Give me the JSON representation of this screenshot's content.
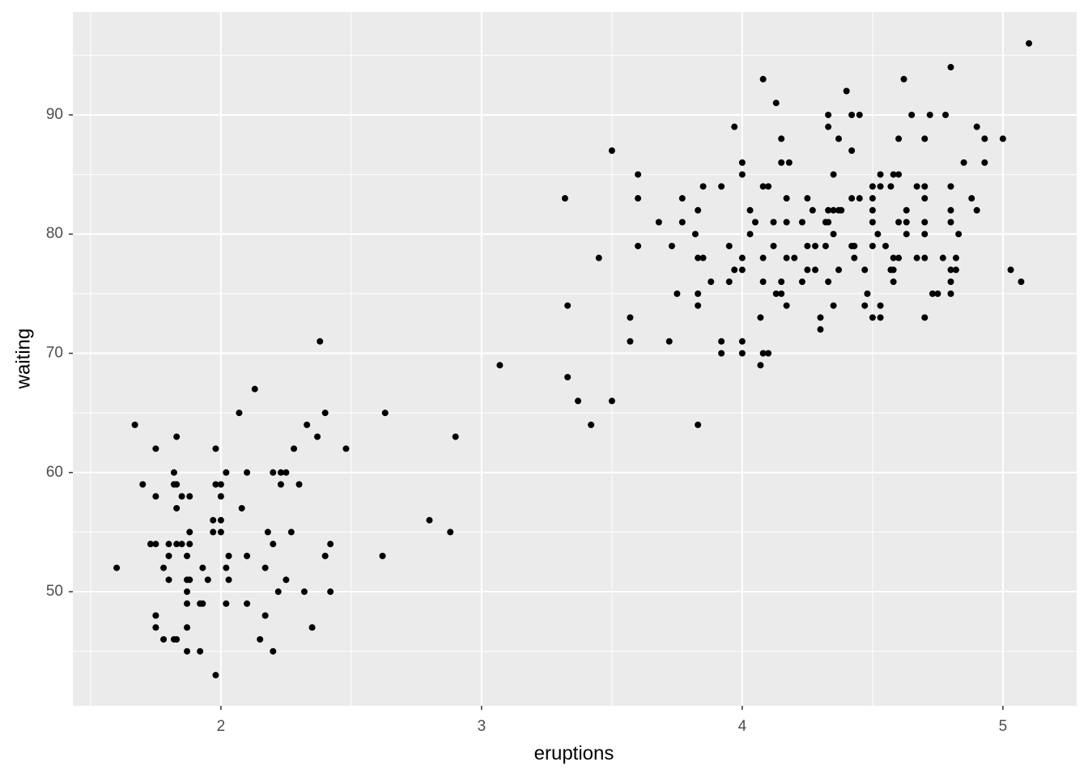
{
  "chart_data": {
    "type": "scatter",
    "x_label": "eruptions",
    "y_label": "waiting",
    "xlim": [
      1.432,
      5.283
    ],
    "ylim": [
      40.43,
      98.62
    ],
    "xticks": [
      2,
      3,
      4,
      5
    ],
    "yticks": [
      50,
      60,
      70,
      80,
      90
    ],
    "xminor": [
      1.5,
      2.5,
      3.5,
      4.5
    ],
    "yminor": [
      45,
      55,
      65,
      75,
      85,
      95
    ],
    "grid": true,
    "color": "#000000",
    "x": [
      1.6,
      1.67,
      1.7,
      1.73,
      1.75,
      1.75,
      1.75,
      1.75,
      1.75,
      1.78,
      1.78,
      1.8,
      1.8,
      1.8,
      1.82,
      1.82,
      1.82,
      1.83,
      1.83,
      1.83,
      1.83,
      1.83,
      1.85,
      1.85,
      1.87,
      1.87,
      1.87,
      1.87,
      1.87,
      1.87,
      1.88,
      1.88,
      1.88,
      1.88,
      1.92,
      1.92,
      1.93,
      1.93,
      1.95,
      1.97,
      1.97,
      1.98,
      1.98,
      1.98,
      2.0,
      2.0,
      2.0,
      2.0,
      2.02,
      2.02,
      2.02,
      2.03,
      2.03,
      2.07,
      2.08,
      2.1,
      2.1,
      2.1,
      2.13,
      2.15,
      2.17,
      2.17,
      2.18,
      2.2,
      2.2,
      2.2,
      2.22,
      2.23,
      2.23,
      2.25,
      2.25,
      2.27,
      2.28,
      2.3,
      2.32,
      2.33,
      2.35,
      2.37,
      2.38,
      2.4,
      2.4,
      2.42,
      2.42,
      2.48,
      2.62,
      2.63,
      2.8,
      2.88,
      2.9,
      3.07,
      3.32,
      3.33,
      3.33,
      3.37,
      3.42,
      3.45,
      3.5,
      3.5,
      3.57,
      3.57,
      3.6,
      3.6,
      3.6,
      3.68,
      3.72,
      3.73,
      3.75,
      3.77,
      3.77,
      3.82,
      3.83,
      3.83,
      3.83,
      3.83,
      3.83,
      3.85,
      3.85,
      3.88,
      3.92,
      3.92,
      3.92,
      3.95,
      3.95,
      3.97,
      3.97,
      4.0,
      4.0,
      4.0,
      4.0,
      4.0,
      4.0,
      4.03,
      4.03,
      4.05,
      4.07,
      4.07,
      4.08,
      4.08,
      4.08,
      4.08,
      4.08,
      4.1,
      4.1,
      4.12,
      4.12,
      4.13,
      4.13,
      4.15,
      4.15,
      4.15,
      4.15,
      4.17,
      4.17,
      4.17,
      4.17,
      4.18,
      4.2,
      4.23,
      4.23,
      4.25,
      4.25,
      4.25,
      4.27,
      4.28,
      4.28,
      4.3,
      4.3,
      4.32,
      4.32,
      4.33,
      4.33,
      4.33,
      4.33,
      4.33,
      4.35,
      4.35,
      4.35,
      4.35,
      4.37,
      4.37,
      4.37,
      4.38,
      4.4,
      4.42,
      4.42,
      4.42,
      4.42,
      4.43,
      4.43,
      4.45,
      4.45,
      4.47,
      4.47,
      4.48,
      4.5,
      4.5,
      4.5,
      4.5,
      4.5,
      4.5,
      4.52,
      4.53,
      4.53,
      4.53,
      4.53,
      4.55,
      4.57,
      4.57,
      4.58,
      4.58,
      4.58,
      4.58,
      4.6,
      4.6,
      4.6,
      4.6,
      4.62,
      4.63,
      4.63,
      4.63,
      4.65,
      4.67,
      4.67,
      4.7,
      4.7,
      4.7,
      4.7,
      4.7,
      4.7,
      4.7,
      4.72,
      4.73,
      4.75,
      4.77,
      4.78,
      4.8,
      4.8,
      4.8,
      4.8,
      4.8,
      4.8,
      4.8,
      4.82,
      4.82,
      4.83,
      4.85,
      4.88,
      4.9,
      4.9,
      4.93,
      4.93,
      5.0,
      5.03,
      5.07,
      5.1
    ],
    "y": [
      52,
      64,
      59,
      54,
      54,
      62,
      58,
      48,
      47,
      52,
      46,
      53,
      51,
      54,
      60,
      59,
      46,
      63,
      59,
      57,
      54,
      46,
      58,
      54,
      53,
      51,
      50,
      49,
      47,
      45,
      58,
      54,
      55,
      51,
      49,
      45,
      52,
      49,
      51,
      56,
      55,
      62,
      59,
      43,
      59,
      58,
      56,
      55,
      60,
      52,
      49,
      53,
      51,
      65,
      57,
      60,
      53,
      49,
      67,
      46,
      52,
      48,
      55,
      60,
      54,
      45,
      50,
      60,
      59,
      60,
      51,
      55,
      62,
      59,
      50,
      64,
      47,
      63,
      71,
      65,
      53,
      54,
      50,
      62,
      53,
      65,
      56,
      55,
      63,
      69,
      83,
      74,
      68,
      66,
      64,
      78,
      87,
      66,
      73,
      71,
      85,
      83,
      79,
      81,
      71,
      79,
      75,
      83,
      81,
      80,
      82,
      78,
      75,
      74,
      64,
      78,
      84,
      76,
      84,
      71,
      70,
      79,
      76,
      89,
      77,
      86,
      85,
      78,
      77,
      71,
      70,
      82,
      80,
      81,
      69,
      73,
      93,
      84,
      78,
      76,
      70,
      84,
      70,
      79,
      81,
      91,
      75,
      88,
      86,
      76,
      75,
      83,
      81,
      78,
      74,
      86,
      78,
      81,
      76,
      83,
      79,
      77,
      82,
      79,
      77,
      73,
      72,
      81,
      79,
      90,
      89,
      82,
      81,
      76,
      85,
      82,
      80,
      74,
      88,
      82,
      77,
      82,
      92,
      87,
      83,
      90,
      79,
      79,
      78,
      90,
      83,
      77,
      74,
      75,
      83,
      84,
      82,
      81,
      79,
      73,
      80,
      85,
      84,
      74,
      73,
      79,
      84,
      77,
      85,
      78,
      77,
      76,
      85,
      88,
      81,
      78,
      93,
      82,
      81,
      80,
      90,
      84,
      78,
      88,
      84,
      83,
      81,
      80,
      78,
      73,
      90,
      75,
      75,
      78,
      90,
      94,
      84,
      82,
      81,
      77,
      76,
      75,
      78,
      77,
      80,
      86,
      83,
      89,
      82,
      88,
      86,
      88,
      77,
      76,
      96
    ]
  }
}
